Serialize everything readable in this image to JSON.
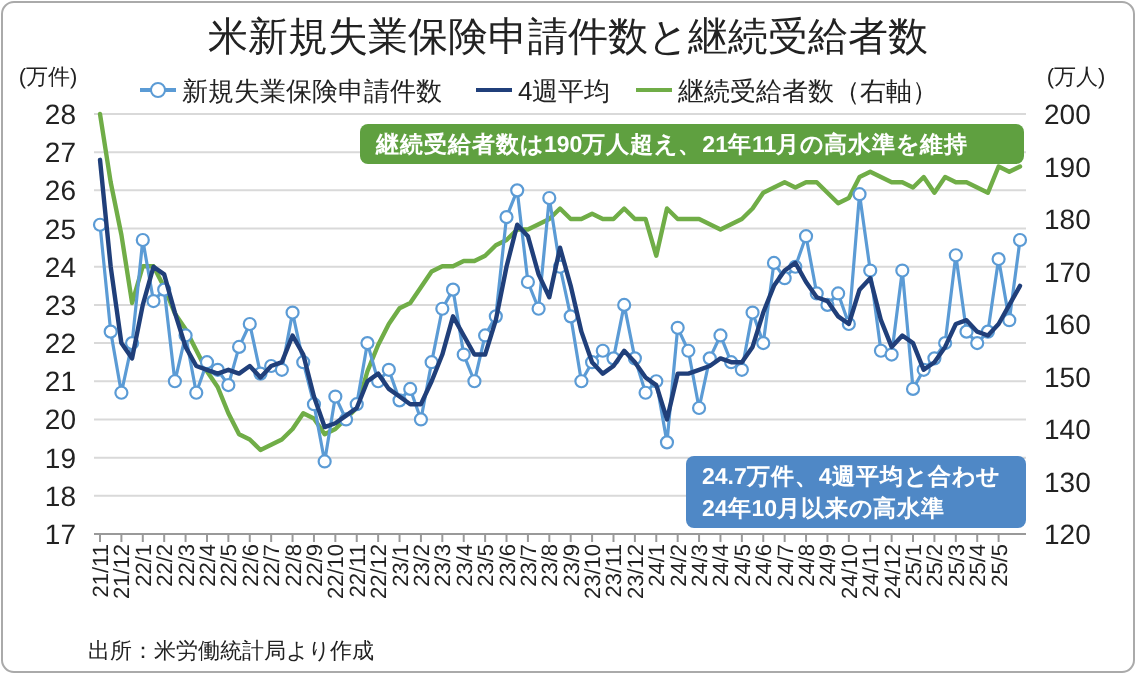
{
  "chart_data": {
    "type": "line",
    "title": "米新規失業保険申請件数と継続受給者数",
    "ylabel": "(万件)",
    "y2label": "(万人)",
    "categories": [
      "21/11",
      null,
      "21/12",
      null,
      "22/1",
      null,
      "22/2",
      null,
      "22/3",
      null,
      "22/4",
      null,
      "22/5",
      null,
      "22/6",
      null,
      "22/7",
      null,
      "22/8",
      null,
      "22/9",
      null,
      "22/10",
      null,
      "22/11",
      null,
      "22/12",
      null,
      "23/1",
      null,
      "23/2",
      null,
      "23/3",
      null,
      "23/4",
      null,
      "23/5",
      null,
      "23/6",
      null,
      "23/7",
      null,
      "23/8",
      null,
      "23/9",
      null,
      "23/10",
      null,
      "23/11",
      null,
      "23/12",
      null,
      "24/1",
      null,
      "24/2",
      null,
      "24/3",
      null,
      "24/4",
      null,
      "24/5",
      null,
      "24/6",
      null,
      "24/7",
      null,
      "24/8",
      null,
      "24/9",
      null,
      "24/10",
      null,
      "24/11",
      null,
      "24/12",
      null,
      "25/1",
      null,
      "25/2",
      null,
      "25/3",
      null,
      "25/4",
      null,
      "25/5",
      null,
      null
    ],
    "series": [
      {
        "name": "新規失業保険申請件数",
        "color": "#5b9bd5",
        "marker": "circle",
        "values": [
          25.1,
          22.3,
          20.7,
          22.0,
          24.7,
          23.1,
          23.4,
          21.0,
          22.2,
          20.7,
          21.5,
          21.3,
          20.9,
          21.9,
          22.5,
          21.2,
          21.4,
          21.3,
          22.8,
          21.5,
          20.4,
          18.9,
          20.6,
          20.0,
          20.4,
          22.0,
          21.0,
          21.3,
          20.5,
          20.8,
          20.0,
          21.5,
          22.9,
          23.4,
          21.7,
          21.0,
          22.2,
          22.7,
          25.3,
          26.0,
          23.6,
          22.9,
          25.8,
          24.0,
          22.7,
          21.0,
          21.5,
          21.8,
          21.6,
          23.0,
          21.6,
          20.7,
          21.0,
          19.4,
          22.4,
          21.8,
          20.3,
          21.6,
          22.2,
          21.5,
          21.3,
          22.8,
          22.0,
          24.1,
          23.7,
          24.0,
          24.8,
          23.3,
          23.0,
          23.3,
          22.5,
          25.9,
          23.9,
          21.8,
          21.7,
          23.9,
          20.8,
          21.3,
          21.6,
          22.0,
          24.3,
          22.3,
          22.0,
          22.3,
          24.2,
          22.6,
          24.7
        ]
      },
      {
        "name": "4週平均",
        "color": "#203f7a",
        "values": [
          26.8,
          24.0,
          22.0,
          21.6,
          23.0,
          24.0,
          23.8,
          22.8,
          21.9,
          21.4,
          21.3,
          21.2,
          21.3,
          21.2,
          21.4,
          21.1,
          21.4,
          21.5,
          22.2,
          21.7,
          20.6,
          19.8,
          19.9,
          20.1,
          20.3,
          21.0,
          21.2,
          20.8,
          20.6,
          20.4,
          20.4,
          21.0,
          21.7,
          22.7,
          22.2,
          21.7,
          21.7,
          22.6,
          24.0,
          25.1,
          24.8,
          23.8,
          23.2,
          24.5,
          23.5,
          22.3,
          21.5,
          21.2,
          21.4,
          21.8,
          21.5,
          21.1,
          20.9,
          20.0,
          21.2,
          21.2,
          21.3,
          21.4,
          21.6,
          21.5,
          21.5,
          21.9,
          22.8,
          23.5,
          23.9,
          24.1,
          23.6,
          23.2,
          23.1,
          22.7,
          22.5,
          23.4,
          23.7,
          22.6,
          21.9,
          22.2,
          22.0,
          21.3,
          21.5,
          21.9,
          22.5,
          22.6,
          22.3,
          22.2,
          22.5,
          23.0,
          23.5
        ]
      },
      {
        "name": "継続受給者数（右軸）",
        "color": "#70ad47",
        "axis": "y2",
        "values": [
          200,
          187,
          177,
          164,
          171,
          171,
          167,
          162,
          159,
          155,
          151,
          148,
          143,
          139,
          138,
          136,
          137,
          138,
          140,
          143,
          142,
          139,
          140,
          142,
          144,
          151,
          156,
          160,
          163,
          164,
          167,
          170,
          171,
          171,
          172,
          172,
          173,
          175,
          176,
          178,
          178,
          179,
          180,
          182,
          180,
          180,
          181,
          180,
          180,
          182,
          180,
          180,
          173,
          182,
          180,
          180,
          180,
          179,
          178,
          179,
          180,
          182,
          185,
          186,
          187,
          186,
          187,
          187,
          185,
          183,
          184,
          188,
          189,
          188,
          187,
          187,
          186,
          188,
          185,
          188,
          187,
          187,
          186,
          185,
          190,
          189,
          190
        ]
      }
    ],
    "ylim": [
      17,
      28
    ],
    "yticks": [
      17,
      18,
      19,
      20,
      21,
      22,
      23,
      24,
      25,
      26,
      27,
      28
    ],
    "y2lim": [
      120,
      200
    ],
    "y2ticks": [
      120,
      130,
      140,
      150,
      160,
      170,
      180,
      190,
      200
    ],
    "grid": "y",
    "legend": "top",
    "annotations": [
      "継続受給者数は190万人超え、21年11月の高水準を維持",
      "24.7万件、4週平均と合わせ\n24年10月以来の高水準",
      "出所：米労働統計局より作成"
    ]
  }
}
